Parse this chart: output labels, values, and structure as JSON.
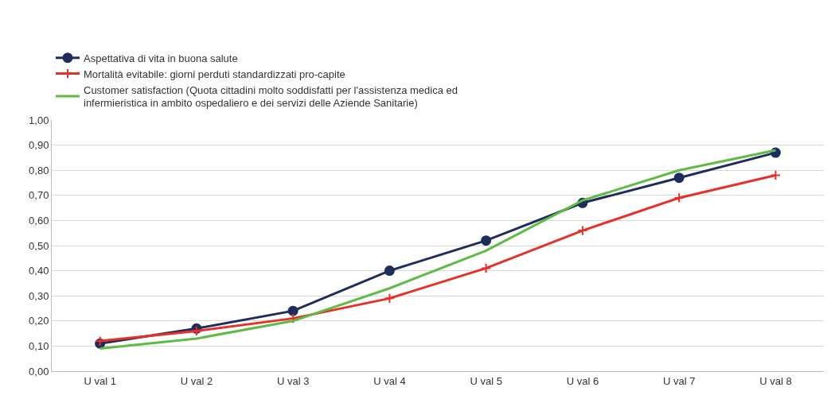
{
  "chart_data": {
    "type": "line",
    "categories": [
      "U val 1",
      "U val 2",
      "U val 3",
      "U val 4",
      "U val 5",
      "U val 6",
      "U val 7",
      "U val 8"
    ],
    "series": [
      {
        "name": "Aspettativa di vita in buona salute",
        "color": "#1f2d5a",
        "marker": "circle",
        "values": [
          0.11,
          0.17,
          0.24,
          0.4,
          0.52,
          0.67,
          0.77,
          0.87
        ]
      },
      {
        "name": "Mortalità evitabile: giorni perduti standardizzati pro-capite",
        "color": "#e8302a",
        "marker": "cross",
        "values": [
          0.12,
          0.16,
          0.21,
          0.29,
          0.41,
          0.56,
          0.69,
          0.78
        ]
      },
      {
        "name": "Customer satisfaction (Quota cittadini molto soddisfatti per l'assistenza medica ed infermieristica in ambito ospedaliero e dei servizi delle Aziende Sanitarie)",
        "color": "#5dbb46",
        "marker": "none",
        "values": [
          0.09,
          0.13,
          0.2,
          0.33,
          0.48,
          0.68,
          0.8,
          0.88
        ]
      }
    ],
    "ylim": [
      0,
      1
    ],
    "yticks": [
      {
        "value": 0,
        "label": "0,00"
      },
      {
        "value": 0.1,
        "label": "0,10"
      },
      {
        "value": 0.2,
        "label": "0,20"
      },
      {
        "value": 0.3,
        "label": "0,30"
      },
      {
        "value": 0.4,
        "label": "0,40"
      },
      {
        "value": 0.5,
        "label": "0,50"
      },
      {
        "value": 0.6,
        "label": "0,60"
      },
      {
        "value": 0.7,
        "label": "0,70"
      },
      {
        "value": 0.8,
        "label": "0,80"
      },
      {
        "value": 0.9,
        "label": "0,90"
      },
      {
        "value": 1,
        "label": "1,00"
      }
    ],
    "grid": "y",
    "legend": "top left",
    "line_style": "solid"
  }
}
